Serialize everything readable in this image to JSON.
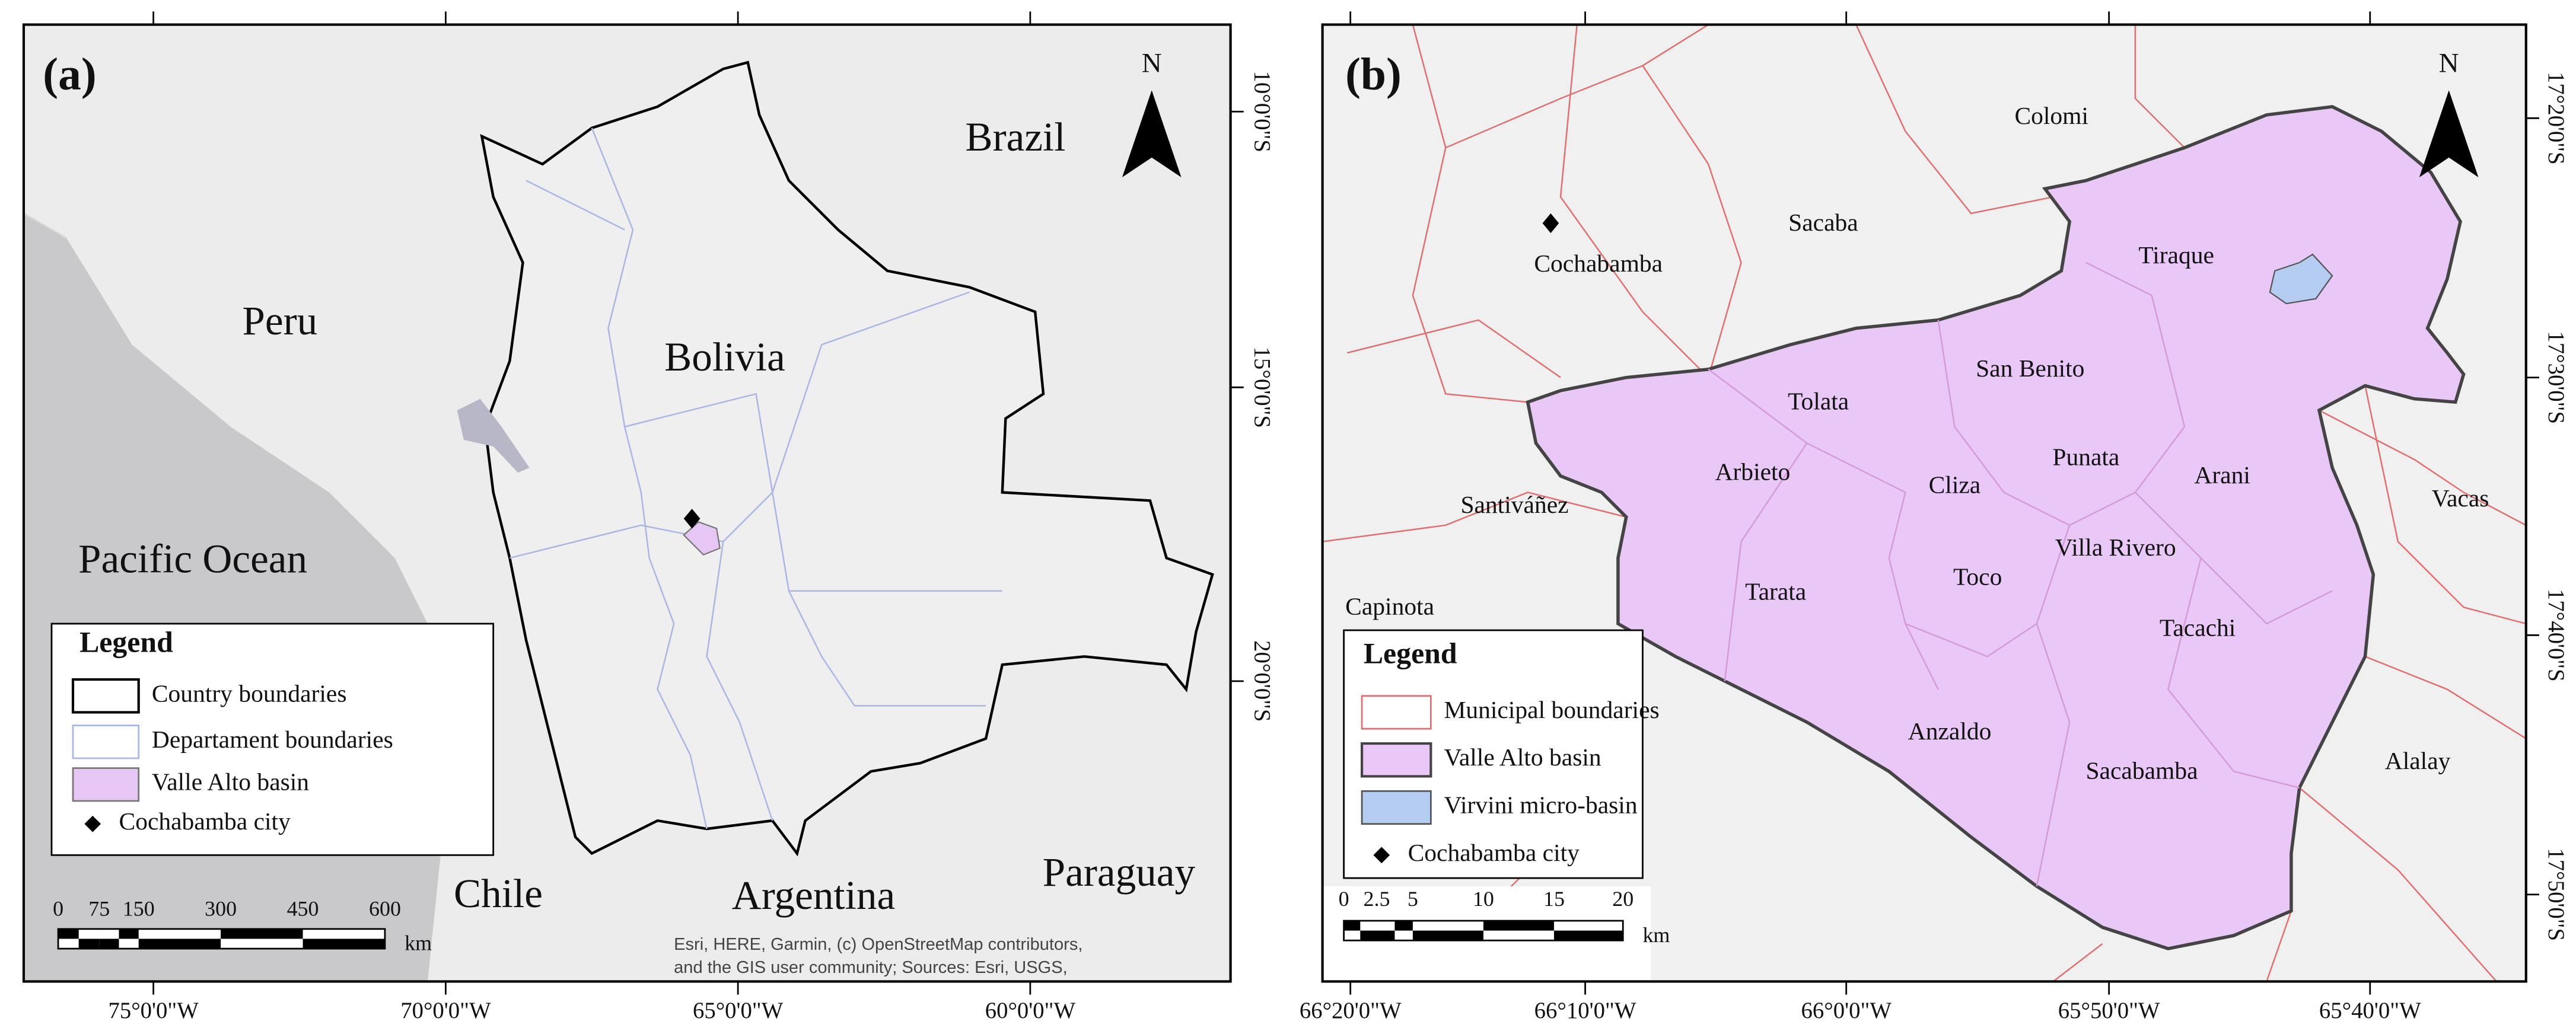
{
  "panels": [
    {
      "label": "(a)",
      "north": "N",
      "places": [
        "Brazil",
        "Peru",
        "Bolivia",
        "Pacific Ocean",
        "Chile",
        "Argentina",
        "Paraguay"
      ],
      "legend": {
        "title": "Legend",
        "items": [
          "Country boundaries",
          "Departament boundaries",
          "Valle Alto basin",
          "Cochabamba city"
        ]
      },
      "scale": {
        "labels": [
          "0",
          "75",
          "150",
          "300",
          "450",
          "600"
        ],
        "unit": "km"
      },
      "xticks": [
        "75°0'0\"W",
        "70°0'0\"W",
        "65°0'0\"W",
        "60°0'0\"W"
      ],
      "yticks": [
        "10°0'0\"S",
        "15°0'0\"S",
        "20°0'0\"S"
      ],
      "attribution": [
        "Esri, HERE, Garmin, (c) OpenStreetMap contributors,",
        "and the GIS user community; Sources: Esri, USGS,"
      ]
    },
    {
      "label": "(b)",
      "north": "N",
      "places": [
        "Colomi",
        "Sacaba",
        "Cochabamba",
        "Tiraque",
        "San Benito",
        "Tolata",
        "Arbieto",
        "Cliza",
        "Punata",
        "Arani",
        "Santiváñez",
        "Vacas",
        "Villa Rivero",
        "Toco",
        "Tarata",
        "Capinota",
        "Tacachi",
        "Anzaldo",
        "Sacabamba",
        "Alalay"
      ],
      "legend": {
        "title": "Legend",
        "items": [
          "Municipal boundaries",
          "Valle Alto basin",
          "Virvini micro-basin",
          "Cochabamba city"
        ]
      },
      "scale": {
        "labels": [
          "0",
          "2.5",
          "5",
          "10",
          "15",
          "20"
        ],
        "unit": "km"
      },
      "xticks": [
        "66°20'0\"W",
        "66°10'0\"W",
        "66°0'0\"W",
        "65°50'0\"W",
        "65°40'0\"W"
      ],
      "yticks": [
        "17°20'0\"S",
        "17°30'0\"S",
        "17°40'0\"S",
        "17°50'0\"S"
      ]
    }
  ]
}
